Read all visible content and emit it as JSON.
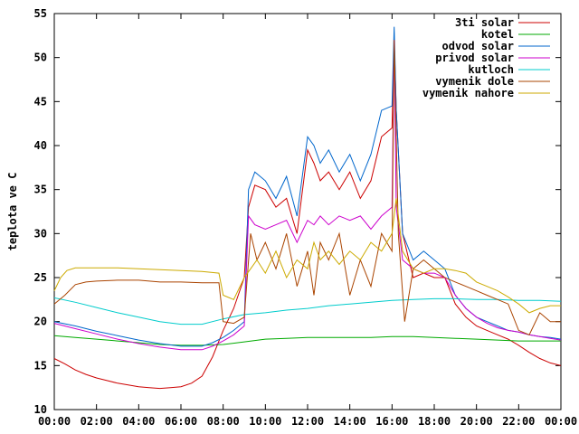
{
  "chart_data": {
    "type": "line",
    "title": "",
    "xlabel": "",
    "ylabel": "teplota ve C",
    "xlim": [
      "00:00",
      "24:00"
    ],
    "ylim": [
      10,
      55
    ],
    "x_ticks": [
      "00:00",
      "02:00",
      "04:00",
      "06:00",
      "08:00",
      "10:00",
      "12:00",
      "14:00",
      "16:00",
      "18:00",
      "20:00",
      "22:00",
      "00:00"
    ],
    "y_ticks": [
      10,
      15,
      20,
      25,
      30,
      35,
      40,
      45,
      50,
      55
    ],
    "legend_position": "top-right",
    "grid": false,
    "series": [
      {
        "name": "3ti solar",
        "color": "#cc0000",
        "x": [
          0,
          0.5,
          1,
          1.5,
          2,
          2.5,
          3,
          3.5,
          4,
          4.5,
          5,
          5.5,
          6,
          6.5,
          7,
          7.5,
          8,
          8.5,
          9,
          9.2,
          9.5,
          10,
          10.5,
          11,
          11.5,
          12,
          12.3,
          12.6,
          13,
          13.5,
          14,
          14.5,
          15,
          15.5,
          16,
          16.1,
          16.2,
          16.5,
          17,
          17.5,
          18,
          18.5,
          19,
          19.5,
          20,
          20.5,
          21,
          21.5,
          22,
          22.5,
          23,
          23.5,
          24
        ],
        "values": [
          15.8,
          15.2,
          14.5,
          14,
          13.6,
          13.3,
          13,
          12.8,
          12.6,
          12.5,
          12.4,
          12.5,
          12.6,
          13,
          13.8,
          16,
          19,
          21.5,
          25,
          33,
          35.5,
          35,
          33,
          34,
          30,
          39.5,
          38,
          36,
          37,
          35,
          37,
          34,
          36,
          41,
          42,
          52,
          44,
          30,
          25,
          25.5,
          25,
          25,
          22,
          20.5,
          19.5,
          19,
          18.5,
          18,
          17.3,
          16.5,
          15.8,
          15.3,
          15
        ]
      },
      {
        "name": "kotel",
        "color": "#00aa00",
        "x": [
          0,
          1,
          2,
          3,
          4,
          5,
          6,
          7,
          8,
          9,
          10,
          11,
          12,
          13,
          14,
          15,
          16,
          17,
          18,
          19,
          20,
          21,
          22,
          23,
          24
        ],
        "values": [
          18.4,
          18.2,
          18,
          17.8,
          17.6,
          17.4,
          17.3,
          17.3,
          17.4,
          17.7,
          18,
          18.1,
          18.2,
          18.2,
          18.2,
          18.2,
          18.3,
          18.3,
          18.2,
          18.1,
          18,
          17.9,
          17.8,
          17.8,
          17.8
        ]
      },
      {
        "name": "odvod solar",
        "color": "#0066cc",
        "x": [
          0,
          1,
          2,
          3,
          4,
          5,
          6,
          7,
          7.5,
          8,
          8.5,
          9,
          9.2,
          9.5,
          10,
          10.5,
          11,
          11.5,
          12,
          12.3,
          12.6,
          13,
          13.5,
          14,
          14.5,
          15,
          15.5,
          16,
          16.1,
          16.2,
          16.5,
          17,
          17.5,
          18,
          18.5,
          19,
          19.5,
          20,
          20.5,
          21,
          21.5,
          22,
          22.5,
          23,
          23.5,
          24
        ],
        "values": [
          20,
          19.5,
          18.9,
          18.4,
          17.9,
          17.5,
          17.2,
          17.2,
          17.6,
          18.2,
          19,
          20,
          35,
          37,
          36,
          34,
          36.5,
          32,
          41,
          40,
          38,
          39.5,
          37,
          39,
          36,
          39,
          44,
          44.5,
          53.5,
          44,
          30,
          27,
          28,
          27,
          26,
          23,
          21.5,
          20.5,
          20,
          19.5,
          19,
          18.8,
          18.5,
          18.3,
          18.2,
          18
        ]
      },
      {
        "name": "privod solar",
        "color": "#cc00cc",
        "x": [
          0,
          1,
          2,
          3,
          4,
          5,
          6,
          7,
          7.5,
          8,
          8.5,
          9,
          9.2,
          9.5,
          10,
          10.5,
          11,
          11.5,
          12,
          12.3,
          12.6,
          13,
          13.5,
          14,
          14.5,
          15,
          15.5,
          16,
          16.1,
          16.2,
          16.5,
          17,
          17.5,
          18,
          18.5,
          19,
          19.5,
          20,
          20.5,
          21,
          21.5,
          22,
          22.5,
          23,
          23.5,
          24
        ],
        "values": [
          19.8,
          19.2,
          18.6,
          18,
          17.5,
          17.1,
          16.8,
          16.8,
          17.2,
          17.8,
          18.5,
          19.5,
          32,
          31,
          30.5,
          31,
          31.5,
          29,
          31.5,
          31,
          32,
          31,
          32,
          31.5,
          32,
          30.5,
          32,
          33,
          52,
          33,
          27,
          26,
          25.5,
          25.5,
          25,
          23,
          21.5,
          20.5,
          19.8,
          19.3,
          19,
          18.8,
          18.5,
          18.3,
          18.1,
          17.9
        ]
      },
      {
        "name": "kutloch",
        "color": "#00cccc",
        "x": [
          0,
          1,
          2,
          3,
          4,
          5,
          6,
          7,
          8,
          9,
          10,
          11,
          12,
          13,
          14,
          15,
          16,
          17,
          18,
          19,
          20,
          21,
          22,
          23,
          24
        ],
        "values": [
          22.7,
          22.2,
          21.6,
          21,
          20.5,
          20,
          19.7,
          19.7,
          20.3,
          20.8,
          21,
          21.3,
          21.5,
          21.8,
          22,
          22.2,
          22.4,
          22.5,
          22.6,
          22.6,
          22.5,
          22.5,
          22.4,
          22.4,
          22.3
        ]
      },
      {
        "name": "vymenik dole",
        "color": "#aa4400",
        "x": [
          0,
          0.5,
          1,
          1.5,
          2,
          3,
          4,
          5,
          6,
          7,
          7.8,
          8,
          8.5,
          9,
          9.3,
          9.6,
          10,
          10.5,
          11,
          11.5,
          12,
          12.3,
          12.6,
          13,
          13.5,
          14,
          14.5,
          15,
          15.5,
          16,
          16.1,
          16.3,
          16.6,
          17,
          17.5,
          18,
          18.5,
          19,
          19.5,
          20,
          20.5,
          21,
          21.5,
          22,
          22.5,
          23,
          23.5,
          24
        ],
        "values": [
          22,
          23,
          24.2,
          24.5,
          24.6,
          24.7,
          24.7,
          24.5,
          24.5,
          24.4,
          24.4,
          20,
          19.8,
          20.5,
          30,
          27,
          29,
          26,
          30,
          24,
          28,
          23,
          29,
          27,
          30,
          23,
          27,
          24,
          30,
          28,
          52,
          30,
          20,
          26,
          27,
          26,
          25,
          24.5,
          24,
          23.5,
          23,
          22.5,
          22,
          19,
          18.5,
          21,
          20,
          20
        ]
      },
      {
        "name": "vymenik nahore",
        "color": "#ccaa00",
        "x": [
          0,
          0.3,
          0.6,
          1,
          1.5,
          2,
          3,
          4,
          5,
          6,
          7,
          7.8,
          8,
          8.5,
          9,
          9.3,
          9.6,
          10,
          10.5,
          11,
          11.5,
          12,
          12.3,
          12.6,
          13,
          13.5,
          14,
          14.5,
          15,
          15.5,
          16,
          16.2,
          16.5,
          17,
          17.5,
          18,
          18.5,
          19,
          19.5,
          20,
          20.5,
          21,
          21.5,
          22,
          22.5,
          23,
          23.5,
          24
        ],
        "values": [
          23.5,
          25,
          25.8,
          26.1,
          26.1,
          26.1,
          26.1,
          26,
          25.9,
          25.8,
          25.7,
          25.5,
          23,
          22.5,
          25,
          26,
          27,
          25.5,
          28,
          25,
          27,
          26,
          29,
          27,
          28,
          26.5,
          28,
          27,
          29,
          28,
          30,
          34,
          28,
          26,
          25.5,
          26,
          26,
          25.8,
          25.5,
          24.5,
          24,
          23.5,
          22.8,
          22,
          21,
          21.5,
          21.8,
          21.8
        ]
      }
    ]
  }
}
